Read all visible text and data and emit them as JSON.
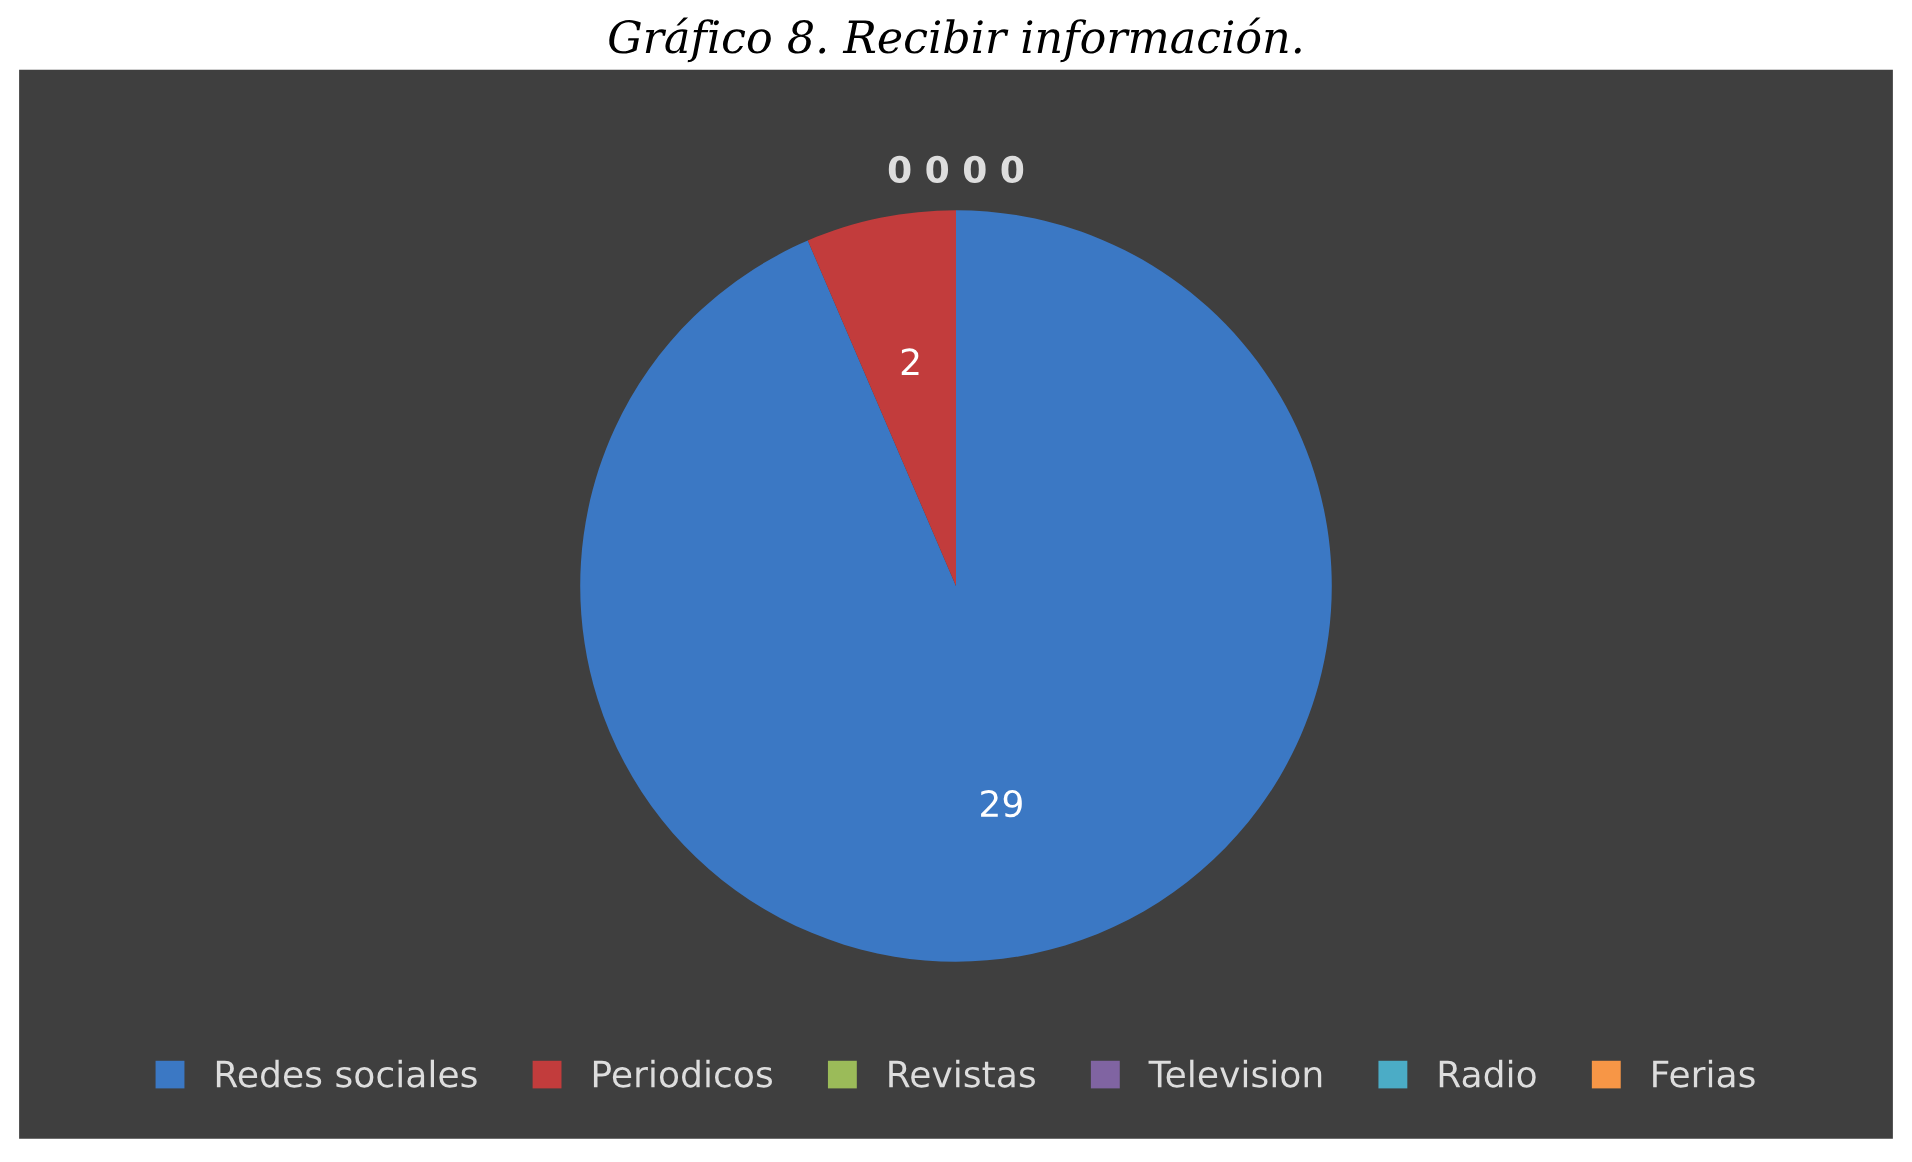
{
  "chart_data": {
    "type": "pie",
    "title": "Gráfico 8. Recibir información.",
    "categories": [
      "Redes sociales",
      "Periodicos",
      "Revistas",
      "Television",
      "Radio",
      "Ferias"
    ],
    "values": [
      29,
      2,
      0,
      0,
      0,
      0
    ],
    "colors": [
      "#3b78c4",
      "#c23c3c",
      "#9bbb59",
      "#8064a2",
      "#4bacc6",
      "#f79646"
    ],
    "value_labels": [
      "29",
      "2",
      "0",
      "0",
      "0",
      "0"
    ],
    "legend": "bottom"
  }
}
